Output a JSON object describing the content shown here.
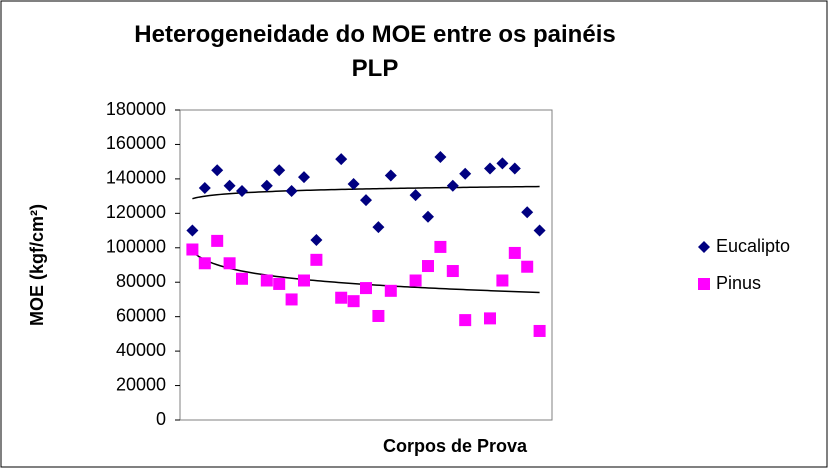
{
  "chart_data": {
    "type": "scatter",
    "title": "Heterogeneidade do MOE entre os painéis PLP",
    "xlabel": "Corpos de Prova",
    "ylabel": "MOE (kgf/cm²)",
    "xlim": [
      0,
      30
    ],
    "ylim": [
      0,
      180000
    ],
    "yticks": [
      0,
      20000,
      40000,
      60000,
      80000,
      100000,
      120000,
      140000,
      160000,
      180000
    ],
    "trendline": "logarithmic",
    "legend": "right",
    "series": [
      {
        "name": "Eucalipto",
        "color": "#000080",
        "marker": "diamond",
        "x": [
          1,
          2,
          3,
          4,
          5,
          7,
          8,
          9,
          10,
          11,
          13,
          14,
          15,
          16,
          17,
          19,
          20,
          21,
          22,
          23,
          25,
          26,
          27,
          28,
          29
        ],
        "values": [
          110000,
          134700,
          145000,
          136000,
          133000,
          136000,
          145000,
          133000,
          141000,
          104500,
          151500,
          137000,
          127700,
          112000,
          142000,
          130600,
          118000,
          152700,
          136000,
          143000,
          146000,
          149000,
          146000,
          120600,
          110000
        ]
      },
      {
        "name": "Pinus",
        "color": "#ff00ff",
        "marker": "square",
        "x": [
          1,
          2,
          3,
          4,
          5,
          7,
          8,
          9,
          10,
          11,
          13,
          14,
          15,
          16,
          17,
          19,
          20,
          21,
          22,
          23,
          25,
          26,
          27,
          28,
          29
        ],
        "values": [
          99000,
          91000,
          104000,
          91000,
          82000,
          81000,
          79000,
          70000,
          81000,
          93000,
          71000,
          69000,
          76600,
          60400,
          75000,
          81000,
          89400,
          100500,
          86500,
          58000,
          59000,
          81000,
          97000,
          89000,
          51700
        ]
      }
    ]
  }
}
